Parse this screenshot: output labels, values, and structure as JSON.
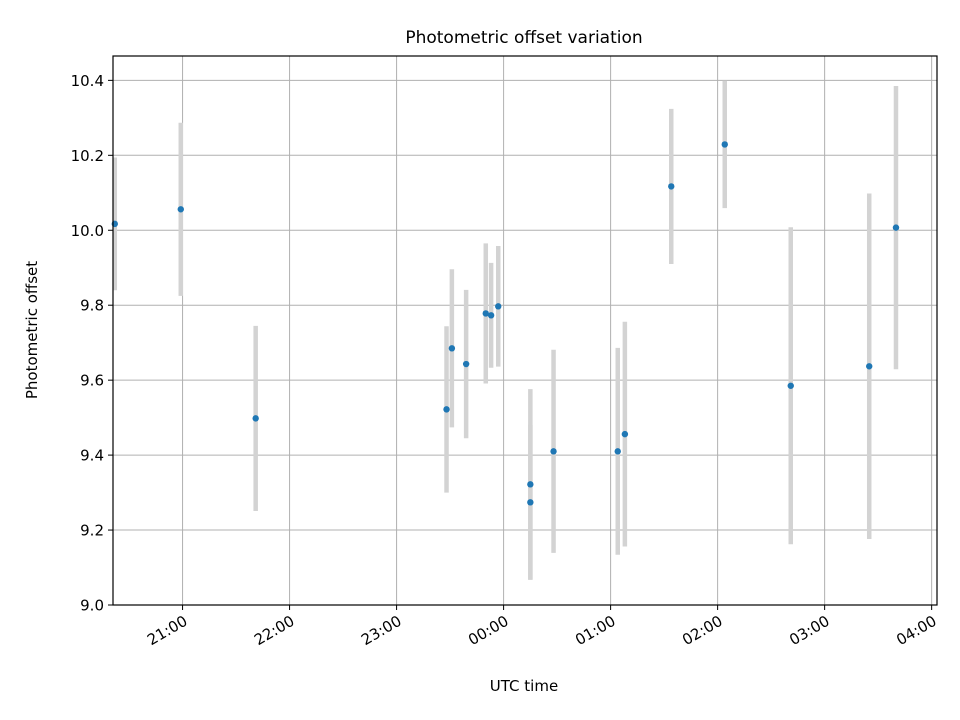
{
  "chart_data": {
    "type": "scatter",
    "title": "Photometric offset variation",
    "xlabel": "UTC time",
    "ylabel": "Photometric offset",
    "x_unit": "hours from 21:00 UTC reference day",
    "xlim": [
      "20:21",
      "04:03"
    ],
    "ylim": [
      9.0,
      10.465
    ],
    "x_tick_labels": [
      "21:00",
      "22:00",
      "23:00",
      "00:00",
      "01:00",
      "02:00",
      "03:00",
      "04:00"
    ],
    "y_tick_labels": [
      "9.0",
      "9.2",
      "9.4",
      "9.6",
      "9.8",
      "10.0",
      "10.2",
      "10.4"
    ],
    "y_ticks": [
      9.0,
      9.2,
      9.4,
      9.6,
      9.8,
      10.0,
      10.2,
      10.4
    ],
    "grid": true,
    "marker_color": "#1f77b4",
    "errorbar_color": "#d3d3d3",
    "points": [
      {
        "time": "20:22",
        "y": 10.017,
        "err": 0.177
      },
      {
        "time": "20:59",
        "y": 10.056,
        "err": 0.231
      },
      {
        "time": "21:41",
        "y": 9.498,
        "err": 0.247
      },
      {
        "time": "23:28",
        "y": 9.522,
        "err": 0.222
      },
      {
        "time": "23:31",
        "y": 9.685,
        "err": 0.211
      },
      {
        "time": "23:39",
        "y": 9.643,
        "err": 0.198
      },
      {
        "time": "23:50",
        "y": 9.778,
        "err": 0.187
      },
      {
        "time": "23:53",
        "y": 9.773,
        "err": 0.14
      },
      {
        "time": "23:57",
        "y": 9.797,
        "err": 0.161
      },
      {
        "time": "00:15",
        "y": 9.322,
        "err": 0.254
      },
      {
        "time": "00:15",
        "y": 9.274,
        "err": 0.207
      },
      {
        "time": "00:28",
        "y": 9.41,
        "err": 0.271
      },
      {
        "time": "01:04",
        "y": 9.41,
        "err": 0.276
      },
      {
        "time": "01:08",
        "y": 9.456,
        "err": 0.3
      },
      {
        "time": "01:34",
        "y": 10.117,
        "err": 0.207
      },
      {
        "time": "02:04",
        "y": 10.229,
        "err": 0.17
      },
      {
        "time": "02:41",
        "y": 9.585,
        "err": 0.423
      },
      {
        "time": "03:25",
        "y": 9.637,
        "err": 0.461
      },
      {
        "time": "03:40",
        "y": 10.007,
        "err": 0.378
      }
    ]
  }
}
